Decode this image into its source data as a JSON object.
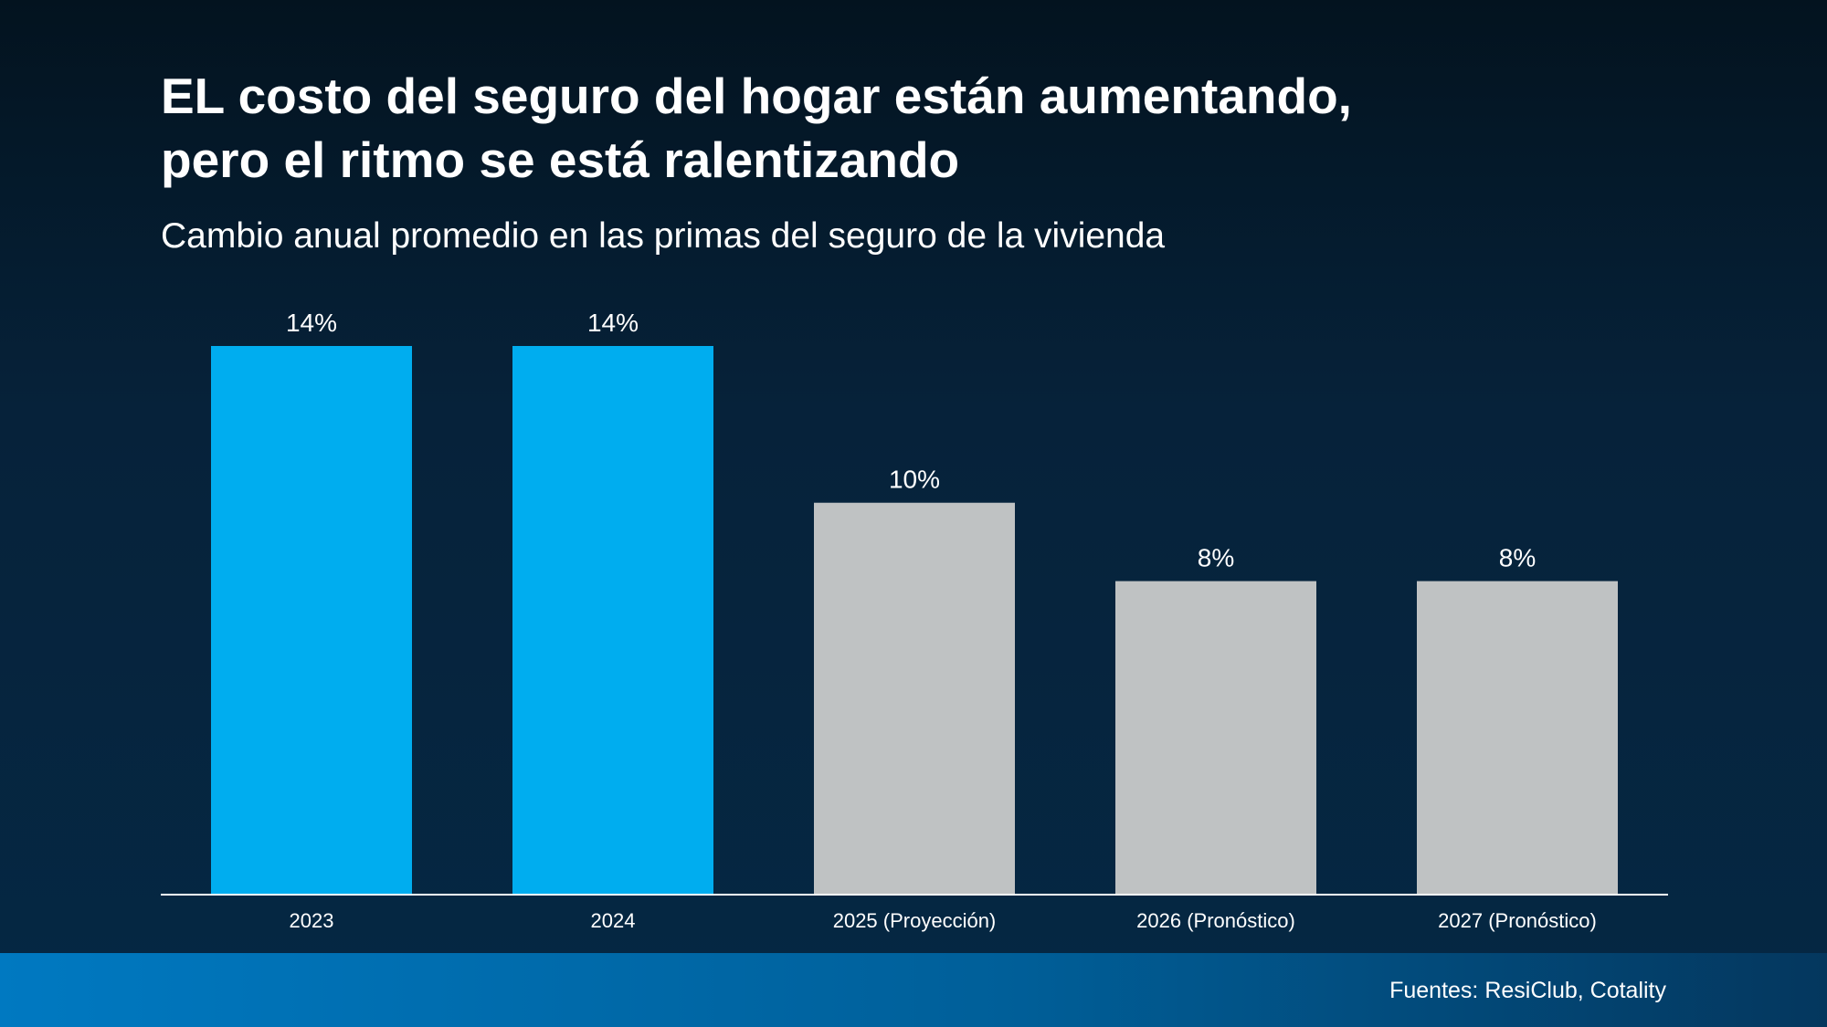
{
  "slide": {
    "title_lines": [
      "EL costo del seguro del hogar están aumentando,",
      "pero el ritmo se está ralentizando"
    ],
    "subtitle": "Cambio anual promedio en las primas del seguro de la vivienda",
    "source": "Fuentes: ResiClub, Cotality"
  },
  "chart_data": {
    "type": "bar",
    "title": "EL costo del seguro del hogar están aumentando, pero el ritmo se está ralentizando",
    "subtitle": "Cambio anual promedio en las primas del seguro de la vivienda",
    "categories": [
      "2023",
      "2024",
      "2025 (Proyección)",
      "2026 (Pronóstico)",
      "2027 (Pronóstico)"
    ],
    "values": [
      14,
      14,
      10,
      8,
      8
    ],
    "data_labels": [
      "14%",
      "14%",
      "10%",
      "8%",
      "8%"
    ],
    "bar_colors": [
      "#00adef",
      "#00adef",
      "#bfc2c3",
      "#bfc2c3",
      "#bfc2c3"
    ],
    "ylim": [
      0,
      14
    ],
    "grid": false,
    "legend": "none"
  },
  "colors": {
    "text": "#ffffff",
    "axis": "#ffffff"
  }
}
